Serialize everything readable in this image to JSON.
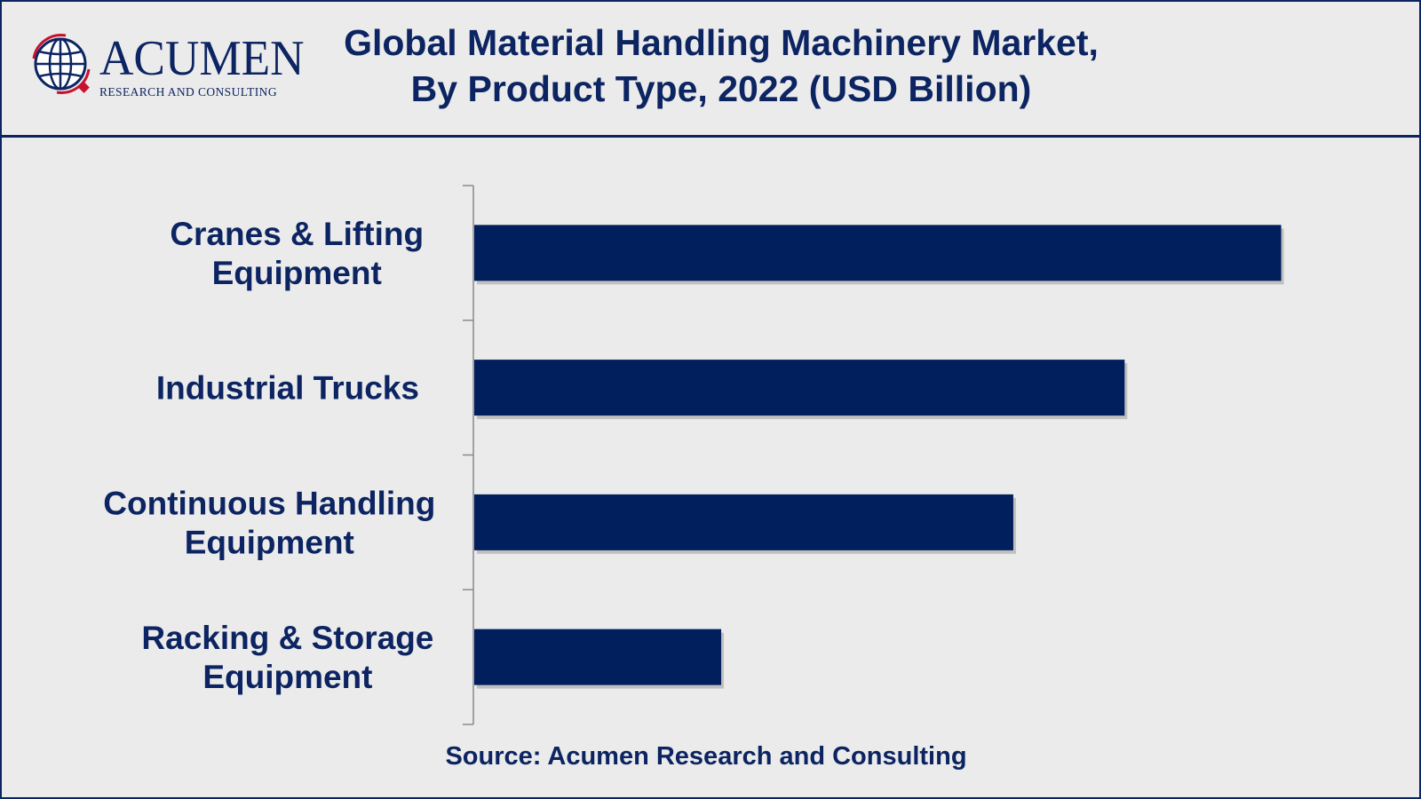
{
  "header": {
    "logo_text": "ACUMEN",
    "logo_subtext": "RESEARCH AND CONSULTING",
    "title_line1": "Global Material Handling Machinery Market,",
    "title_line2": "By Product Type, 2022 (USD Billion)"
  },
  "source": "Source: Acumen Research and Consulting",
  "colors": {
    "bar": "#001f5c",
    "text": "#0c2461",
    "background": "#ebebeb",
    "accent": "#c8102e"
  },
  "icons": {
    "logo": "globe-logo-icon"
  },
  "chart_data": {
    "type": "bar",
    "orientation": "horizontal",
    "title": "Global Material Handling Machinery Market, By Product Type, 2022 (USD Billion)",
    "categories": [
      [
        "Cranes & Lifting",
        "Equipment"
      ],
      [
        "Industrial Trucks"
      ],
      [
        "Continuous Handling",
        "Equipment"
      ],
      [
        "Racking & Storage",
        "Equipment"
      ]
    ],
    "values": [
      100,
      80.6,
      66.8,
      30.6
    ],
    "xlim": [
      0,
      105
    ],
    "xlabel": "",
    "ylabel": "",
    "grid": false,
    "legend": "none",
    "data_labels": false
  }
}
